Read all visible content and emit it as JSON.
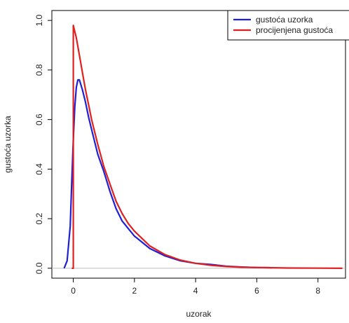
{
  "chart_data": {
    "type": "line",
    "title": "",
    "xlabel": "uzorak",
    "ylabel": "gustoća uzorka",
    "xlim": [
      -0.7,
      8.9
    ],
    "ylim": [
      -0.04,
      1.04
    ],
    "x_ticks": [
      0,
      2,
      4,
      6,
      8
    ],
    "x_tick_labels": [
      "0",
      "2",
      "4",
      "6",
      "8"
    ],
    "y_ticks": [
      0.0,
      0.2,
      0.4,
      0.6,
      0.8,
      1.0
    ],
    "y_tick_labels": [
      "0.0",
      "0.2",
      "0.4",
      "0.6",
      "0.8",
      "1.0"
    ],
    "grid": false,
    "baseline_y": 0,
    "legend": {
      "position": "top-right"
    },
    "series": [
      {
        "name": "gustoća uzorka",
        "color": "#1f1fd6",
        "x": [
          -0.3,
          -0.2,
          -0.1,
          -0.05,
          0.0,
          0.05,
          0.1,
          0.15,
          0.2,
          0.3,
          0.4,
          0.5,
          0.6,
          0.8,
          1.0,
          1.2,
          1.4,
          1.6,
          1.8,
          2.0,
          2.5,
          3.0,
          3.5,
          4.0,
          4.5,
          5.0,
          5.5,
          6.0,
          6.5
        ],
        "y": [
          0.0,
          0.03,
          0.17,
          0.35,
          0.52,
          0.65,
          0.73,
          0.76,
          0.76,
          0.72,
          0.67,
          0.61,
          0.56,
          0.46,
          0.39,
          0.31,
          0.24,
          0.19,
          0.16,
          0.13,
          0.08,
          0.05,
          0.03,
          0.02,
          0.015,
          0.008,
          0.005,
          0.003,
          0.002
        ]
      },
      {
        "name": "procijenjena gustoća",
        "color": "#e02020",
        "x": [
          -0.05,
          0.0,
          0.0,
          0.1,
          0.2,
          0.3,
          0.4,
          0.5,
          0.6,
          0.8,
          1.0,
          1.2,
          1.4,
          1.6,
          1.8,
          2.0,
          2.5,
          3.0,
          3.5,
          4.0,
          4.5,
          5.0,
          5.5,
          6.0,
          6.5,
          7.0,
          8.0,
          8.8
        ],
        "y": [
          0.0,
          0.0,
          0.98,
          0.93,
          0.86,
          0.79,
          0.72,
          0.66,
          0.6,
          0.5,
          0.41,
          0.34,
          0.27,
          0.22,
          0.18,
          0.15,
          0.09,
          0.055,
          0.033,
          0.02,
          0.012,
          0.007,
          0.004,
          0.003,
          0.002,
          0.001,
          0.0003,
          0.0
        ]
      }
    ]
  }
}
